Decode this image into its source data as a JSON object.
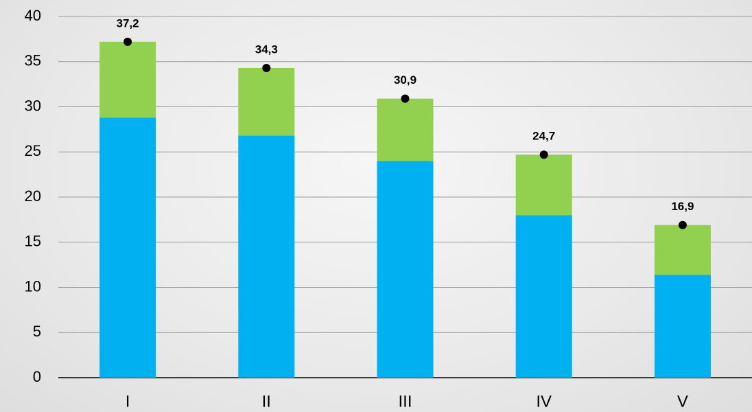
{
  "chart_data": {
    "type": "stacked-bar",
    "categories": [
      "I",
      "II",
      "III",
      "IV",
      "V"
    ],
    "series": [
      {
        "color": "#00b0f0",
        "values": [
          28.8,
          26.8,
          24.0,
          18.0,
          11.4
        ]
      },
      {
        "color": "#92d050",
        "values": [
          8.4,
          7.5,
          6.9,
          6.7,
          5.5
        ]
      },
      {
        "type": "point",
        "color": "#000000",
        "values": [
          37.2,
          34.3,
          30.9,
          24.7,
          16.9
        ],
        "value_labels": [
          "37,2",
          "34,3",
          "30,9",
          "24,7",
          "16,9"
        ]
      }
    ],
    "ylim": [
      0,
      40
    ],
    "yticks": [
      0,
      5,
      10,
      15,
      20,
      25,
      30,
      35,
      40
    ],
    "grid": true
  }
}
